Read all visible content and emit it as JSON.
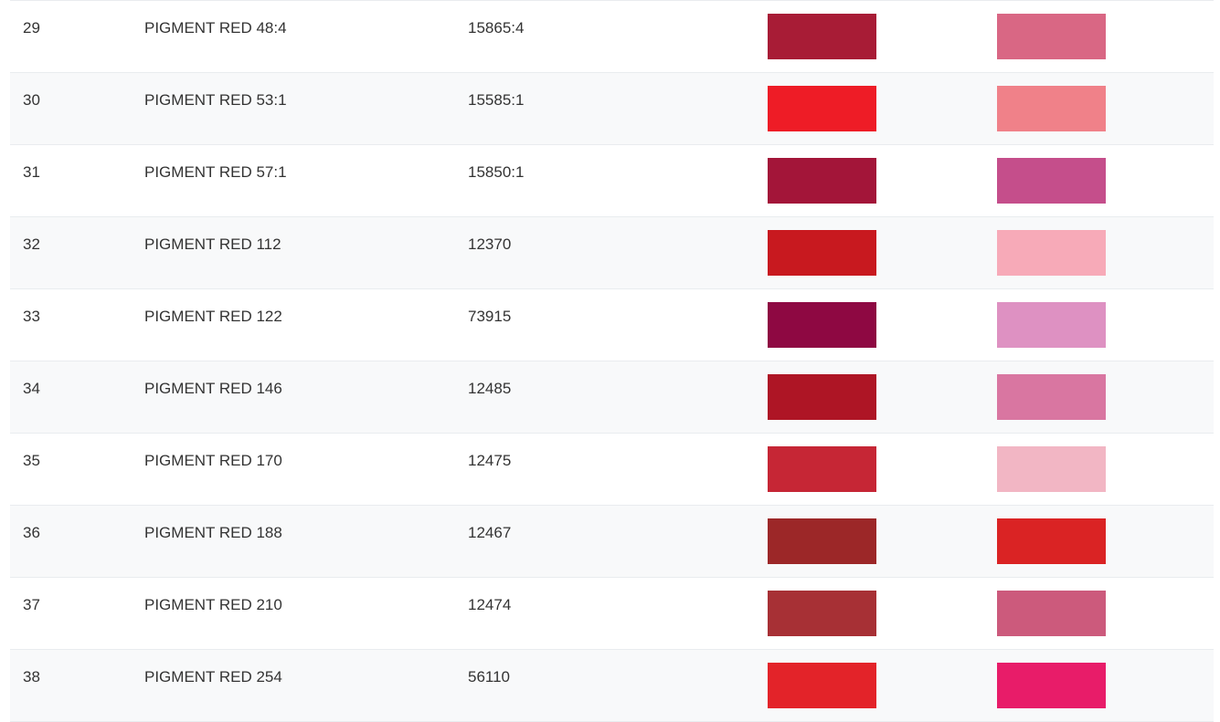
{
  "rows": [
    {
      "num": "29",
      "name": "PIGMENT RED 48:4",
      "ci": "15865:4",
      "mass_color": "#a81c36",
      "tint_color": "#d96784"
    },
    {
      "num": "30",
      "name": "PIGMENT RED 53:1",
      "ci": "15585:1",
      "mass_color": "#ee1c26",
      "tint_color": "#f08189"
    },
    {
      "num": "31",
      "name": "PIGMENT RED 57:1",
      "ci": "15850:1",
      "mass_color": "#a31539",
      "tint_color": "#c54e8b"
    },
    {
      "num": "32",
      "name": "PIGMENT RED 112",
      "ci": "12370",
      "mass_color": "#c8191f",
      "tint_color": "#f7aab8"
    },
    {
      "num": "33",
      "name": "PIGMENT RED 122",
      "ci": "73915",
      "mass_color": "#8e0842",
      "tint_color": "#de91c2"
    },
    {
      "num": "34",
      "name": "PIGMENT RED 146",
      "ci": "12485",
      "mass_color": "#ae1525",
      "tint_color": "#d976a1"
    },
    {
      "num": "35",
      "name": "PIGMENT RED 170",
      "ci": "12475",
      "mass_color": "#c62635",
      "tint_color": "#f2b6c4"
    },
    {
      "num": "36",
      "name": "PIGMENT RED 188",
      "ci": "12467",
      "mass_color": "#9c2728",
      "tint_color": "#da2324"
    },
    {
      "num": "37",
      "name": "PIGMENT RED 210",
      "ci": "12474",
      "mass_color": "#a73035",
      "tint_color": "#cc5a7c"
    },
    {
      "num": "38",
      "name": "PIGMENT RED 254",
      "ci": "56110",
      "mass_color": "#e32329",
      "tint_color": "#e81c69"
    }
  ]
}
